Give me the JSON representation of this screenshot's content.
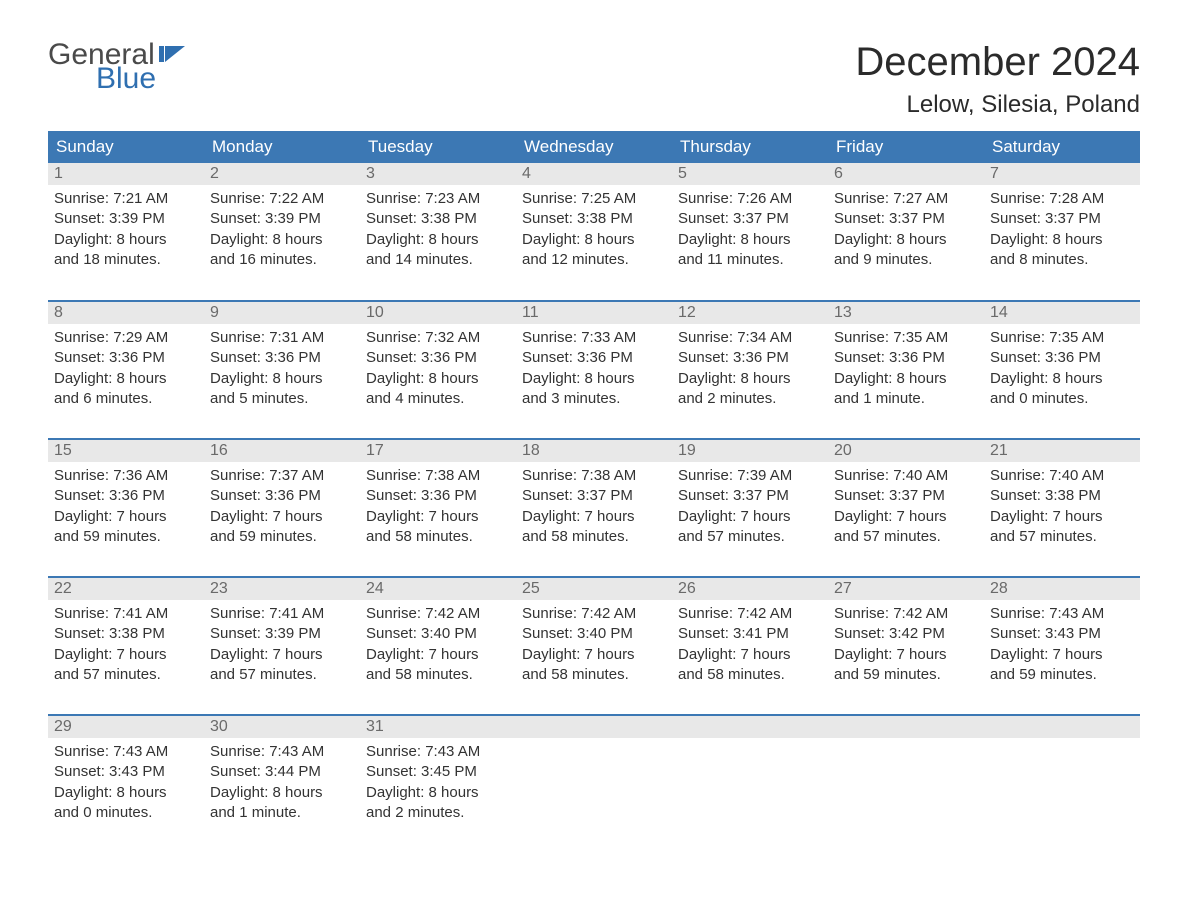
{
  "brand": {
    "word1": "General",
    "word2": "Blue",
    "flag_color": "#2f6fb0",
    "text_gray": "#4a4a4a"
  },
  "header": {
    "month_title": "December 2024",
    "location": "Lelow, Silesia, Poland"
  },
  "style": {
    "header_bg": "#3c78b4",
    "header_text": "#ffffff",
    "daynum_bg": "#e8e8e8",
    "daynum_text": "#6a6a6a",
    "body_text": "#333333",
    "week_border": "#3c78b4",
    "page_bg": "#ffffff",
    "title_fontsize": 40,
    "location_fontsize": 24,
    "weekday_fontsize": 17,
    "cell_fontsize": 15
  },
  "weekdays": [
    "Sunday",
    "Monday",
    "Tuesday",
    "Wednesday",
    "Thursday",
    "Friday",
    "Saturday"
  ],
  "weeks": [
    [
      {
        "day": "1",
        "sunrise": "Sunrise: 7:21 AM",
        "sunset": "Sunset: 3:39 PM",
        "dl1": "Daylight: 8 hours",
        "dl2": "and 18 minutes."
      },
      {
        "day": "2",
        "sunrise": "Sunrise: 7:22 AM",
        "sunset": "Sunset: 3:39 PM",
        "dl1": "Daylight: 8 hours",
        "dl2": "and 16 minutes."
      },
      {
        "day": "3",
        "sunrise": "Sunrise: 7:23 AM",
        "sunset": "Sunset: 3:38 PM",
        "dl1": "Daylight: 8 hours",
        "dl2": "and 14 minutes."
      },
      {
        "day": "4",
        "sunrise": "Sunrise: 7:25 AM",
        "sunset": "Sunset: 3:38 PM",
        "dl1": "Daylight: 8 hours",
        "dl2": "and 12 minutes."
      },
      {
        "day": "5",
        "sunrise": "Sunrise: 7:26 AM",
        "sunset": "Sunset: 3:37 PM",
        "dl1": "Daylight: 8 hours",
        "dl2": "and 11 minutes."
      },
      {
        "day": "6",
        "sunrise": "Sunrise: 7:27 AM",
        "sunset": "Sunset: 3:37 PM",
        "dl1": "Daylight: 8 hours",
        "dl2": "and 9 minutes."
      },
      {
        "day": "7",
        "sunrise": "Sunrise: 7:28 AM",
        "sunset": "Sunset: 3:37 PM",
        "dl1": "Daylight: 8 hours",
        "dl2": "and 8 minutes."
      }
    ],
    [
      {
        "day": "8",
        "sunrise": "Sunrise: 7:29 AM",
        "sunset": "Sunset: 3:36 PM",
        "dl1": "Daylight: 8 hours",
        "dl2": "and 6 minutes."
      },
      {
        "day": "9",
        "sunrise": "Sunrise: 7:31 AM",
        "sunset": "Sunset: 3:36 PM",
        "dl1": "Daylight: 8 hours",
        "dl2": "and 5 minutes."
      },
      {
        "day": "10",
        "sunrise": "Sunrise: 7:32 AM",
        "sunset": "Sunset: 3:36 PM",
        "dl1": "Daylight: 8 hours",
        "dl2": "and 4 minutes."
      },
      {
        "day": "11",
        "sunrise": "Sunrise: 7:33 AM",
        "sunset": "Sunset: 3:36 PM",
        "dl1": "Daylight: 8 hours",
        "dl2": "and 3 minutes."
      },
      {
        "day": "12",
        "sunrise": "Sunrise: 7:34 AM",
        "sunset": "Sunset: 3:36 PM",
        "dl1": "Daylight: 8 hours",
        "dl2": "and 2 minutes."
      },
      {
        "day": "13",
        "sunrise": "Sunrise: 7:35 AM",
        "sunset": "Sunset: 3:36 PM",
        "dl1": "Daylight: 8 hours",
        "dl2": "and 1 minute."
      },
      {
        "day": "14",
        "sunrise": "Sunrise: 7:35 AM",
        "sunset": "Sunset: 3:36 PM",
        "dl1": "Daylight: 8 hours",
        "dl2": "and 0 minutes."
      }
    ],
    [
      {
        "day": "15",
        "sunrise": "Sunrise: 7:36 AM",
        "sunset": "Sunset: 3:36 PM",
        "dl1": "Daylight: 7 hours",
        "dl2": "and 59 minutes."
      },
      {
        "day": "16",
        "sunrise": "Sunrise: 7:37 AM",
        "sunset": "Sunset: 3:36 PM",
        "dl1": "Daylight: 7 hours",
        "dl2": "and 59 minutes."
      },
      {
        "day": "17",
        "sunrise": "Sunrise: 7:38 AM",
        "sunset": "Sunset: 3:36 PM",
        "dl1": "Daylight: 7 hours",
        "dl2": "and 58 minutes."
      },
      {
        "day": "18",
        "sunrise": "Sunrise: 7:38 AM",
        "sunset": "Sunset: 3:37 PM",
        "dl1": "Daylight: 7 hours",
        "dl2": "and 58 minutes."
      },
      {
        "day": "19",
        "sunrise": "Sunrise: 7:39 AM",
        "sunset": "Sunset: 3:37 PM",
        "dl1": "Daylight: 7 hours",
        "dl2": "and 57 minutes."
      },
      {
        "day": "20",
        "sunrise": "Sunrise: 7:40 AM",
        "sunset": "Sunset: 3:37 PM",
        "dl1": "Daylight: 7 hours",
        "dl2": "and 57 minutes."
      },
      {
        "day": "21",
        "sunrise": "Sunrise: 7:40 AM",
        "sunset": "Sunset: 3:38 PM",
        "dl1": "Daylight: 7 hours",
        "dl2": "and 57 minutes."
      }
    ],
    [
      {
        "day": "22",
        "sunrise": "Sunrise: 7:41 AM",
        "sunset": "Sunset: 3:38 PM",
        "dl1": "Daylight: 7 hours",
        "dl2": "and 57 minutes."
      },
      {
        "day": "23",
        "sunrise": "Sunrise: 7:41 AM",
        "sunset": "Sunset: 3:39 PM",
        "dl1": "Daylight: 7 hours",
        "dl2": "and 57 minutes."
      },
      {
        "day": "24",
        "sunrise": "Sunrise: 7:42 AM",
        "sunset": "Sunset: 3:40 PM",
        "dl1": "Daylight: 7 hours",
        "dl2": "and 58 minutes."
      },
      {
        "day": "25",
        "sunrise": "Sunrise: 7:42 AM",
        "sunset": "Sunset: 3:40 PM",
        "dl1": "Daylight: 7 hours",
        "dl2": "and 58 minutes."
      },
      {
        "day": "26",
        "sunrise": "Sunrise: 7:42 AM",
        "sunset": "Sunset: 3:41 PM",
        "dl1": "Daylight: 7 hours",
        "dl2": "and 58 minutes."
      },
      {
        "day": "27",
        "sunrise": "Sunrise: 7:42 AM",
        "sunset": "Sunset: 3:42 PM",
        "dl1": "Daylight: 7 hours",
        "dl2": "and 59 minutes."
      },
      {
        "day": "28",
        "sunrise": "Sunrise: 7:43 AM",
        "sunset": "Sunset: 3:43 PM",
        "dl1": "Daylight: 7 hours",
        "dl2": "and 59 minutes."
      }
    ],
    [
      {
        "day": "29",
        "sunrise": "Sunrise: 7:43 AM",
        "sunset": "Sunset: 3:43 PM",
        "dl1": "Daylight: 8 hours",
        "dl2": "and 0 minutes."
      },
      {
        "day": "30",
        "sunrise": "Sunrise: 7:43 AM",
        "sunset": "Sunset: 3:44 PM",
        "dl1": "Daylight: 8 hours",
        "dl2": "and 1 minute."
      },
      {
        "day": "31",
        "sunrise": "Sunrise: 7:43 AM",
        "sunset": "Sunset: 3:45 PM",
        "dl1": "Daylight: 8 hours",
        "dl2": "and 2 minutes."
      },
      null,
      null,
      null,
      null
    ]
  ]
}
